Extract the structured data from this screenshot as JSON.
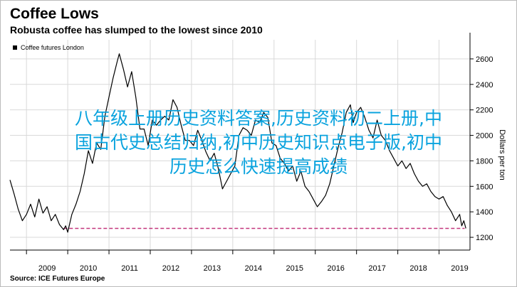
{
  "header": {
    "title": "Coffee Lows",
    "subtitle": "Robusta coffee has slumped to the lowest since 2010"
  },
  "footer": {
    "source": "Source: ICE Futures Europe"
  },
  "overlay": {
    "lines": [
      "八年级上册历史资料答案,历史资料初二上册,中",
      "国古代史总结归纳,初中历史知识点电子版,初中",
      "历史怎么快速提高成绩"
    ],
    "color": "#0aa3de"
  },
  "chart_data": {
    "type": "line",
    "ylabel": "Dollars per ton",
    "ylim": [
      1100,
      2750
    ],
    "yticks": [
      1200,
      1400,
      1600,
      1800,
      2000,
      2200,
      2400,
      2600
    ],
    "xlim": [
      2008.6,
      2019.75
    ],
    "xticks": [
      "2009",
      "2010",
      "2011",
      "2012",
      "2013",
      "2014",
      "2015",
      "2016",
      "2017",
      "2018",
      "2019"
    ],
    "legend": {
      "label": "Coffee futures London",
      "placement": "top-left"
    },
    "series": [
      {
        "name": "Coffee futures London",
        "color": "#000000",
        "points": [
          [
            2008.6,
            1650
          ],
          [
            2008.7,
            1540
          ],
          [
            2008.8,
            1420
          ],
          [
            2008.9,
            1330
          ],
          [
            2009.0,
            1380
          ],
          [
            2009.1,
            1460
          ],
          [
            2009.2,
            1360
          ],
          [
            2009.3,
            1500
          ],
          [
            2009.4,
            1390
          ],
          [
            2009.5,
            1440
          ],
          [
            2009.6,
            1330
          ],
          [
            2009.7,
            1380
          ],
          [
            2009.8,
            1300
          ],
          [
            2009.9,
            1260
          ],
          [
            2009.95,
            1290
          ],
          [
            2010.0,
            1240
          ],
          [
            2010.1,
            1380
          ],
          [
            2010.2,
            1460
          ],
          [
            2010.3,
            1560
          ],
          [
            2010.4,
            1700
          ],
          [
            2010.5,
            1880
          ],
          [
            2010.6,
            1780
          ],
          [
            2010.7,
            1940
          ],
          [
            2010.8,
            1890
          ],
          [
            2010.9,
            2150
          ],
          [
            2011.0,
            2300
          ],
          [
            2011.1,
            2450
          ],
          [
            2011.2,
            2580
          ],
          [
            2011.25,
            2640
          ],
          [
            2011.35,
            2520
          ],
          [
            2011.45,
            2380
          ],
          [
            2011.55,
            2500
          ],
          [
            2011.65,
            2300
          ],
          [
            2011.75,
            2050
          ],
          [
            2011.85,
            2050
          ],
          [
            2011.95,
            1920
          ],
          [
            2012.05,
            2120
          ],
          [
            2012.15,
            2080
          ],
          [
            2012.25,
            2120
          ],
          [
            2012.35,
            2150
          ],
          [
            2012.45,
            2120
          ],
          [
            2012.55,
            2280
          ],
          [
            2012.65,
            2220
          ],
          [
            2012.75,
            2080
          ],
          [
            2012.85,
            1960
          ],
          [
            2012.95,
            1960
          ],
          [
            2013.05,
            1920
          ],
          [
            2013.15,
            2040
          ],
          [
            2013.25,
            1960
          ],
          [
            2013.35,
            1870
          ],
          [
            2013.45,
            1800
          ],
          [
            2013.55,
            1860
          ],
          [
            2013.65,
            1740
          ],
          [
            2013.75,
            1580
          ],
          [
            2013.85,
            1640
          ],
          [
            2013.95,
            1700
          ],
          [
            2014.05,
            1760
          ],
          [
            2014.15,
            2000
          ],
          [
            2014.25,
            2060
          ],
          [
            2014.35,
            2040
          ],
          [
            2014.45,
            2000
          ],
          [
            2014.55,
            2120
          ],
          [
            2014.65,
            2100
          ],
          [
            2014.75,
            2180
          ],
          [
            2014.85,
            2140
          ],
          [
            2014.95,
            1940
          ],
          [
            2015.05,
            1920
          ],
          [
            2015.15,
            1820
          ],
          [
            2015.25,
            1780
          ],
          [
            2015.35,
            1720
          ],
          [
            2015.45,
            1760
          ],
          [
            2015.55,
            1640
          ],
          [
            2015.65,
            1720
          ],
          [
            2015.75,
            1600
          ],
          [
            2015.85,
            1560
          ],
          [
            2015.95,
            1500
          ],
          [
            2016.05,
            1440
          ],
          [
            2016.15,
            1480
          ],
          [
            2016.25,
            1530
          ],
          [
            2016.35,
            1620
          ],
          [
            2016.45,
            1760
          ],
          [
            2016.55,
            1900
          ],
          [
            2016.65,
            2020
          ],
          [
            2016.75,
            2180
          ],
          [
            2016.85,
            2240
          ],
          [
            2016.92,
            2100
          ],
          [
            2017.0,
            2180
          ],
          [
            2017.1,
            2220
          ],
          [
            2017.2,
            2140
          ],
          [
            2017.3,
            2040
          ],
          [
            2017.4,
            1980
          ],
          [
            2017.5,
            2120
          ],
          [
            2017.6,
            2000
          ],
          [
            2017.7,
            1960
          ],
          [
            2017.8,
            1880
          ],
          [
            2017.9,
            1820
          ],
          [
            2018.0,
            1760
          ],
          [
            2018.1,
            1800
          ],
          [
            2018.2,
            1740
          ],
          [
            2018.3,
            1780
          ],
          [
            2018.4,
            1700
          ],
          [
            2018.5,
            1640
          ],
          [
            2018.6,
            1600
          ],
          [
            2018.7,
            1620
          ],
          [
            2018.8,
            1560
          ],
          [
            2018.9,
            1520
          ],
          [
            2019.0,
            1500
          ],
          [
            2019.1,
            1520
          ],
          [
            2019.2,
            1450
          ],
          [
            2019.3,
            1400
          ],
          [
            2019.4,
            1330
          ],
          [
            2019.5,
            1380
          ],
          [
            2019.55,
            1290
          ],
          [
            2019.6,
            1330
          ],
          [
            2019.65,
            1270
          ]
        ]
      }
    ],
    "reference_line": {
      "value": 1270,
      "from": 2009.9,
      "to": 2019.62,
      "color": "#c2357b",
      "style": "dashed"
    }
  }
}
